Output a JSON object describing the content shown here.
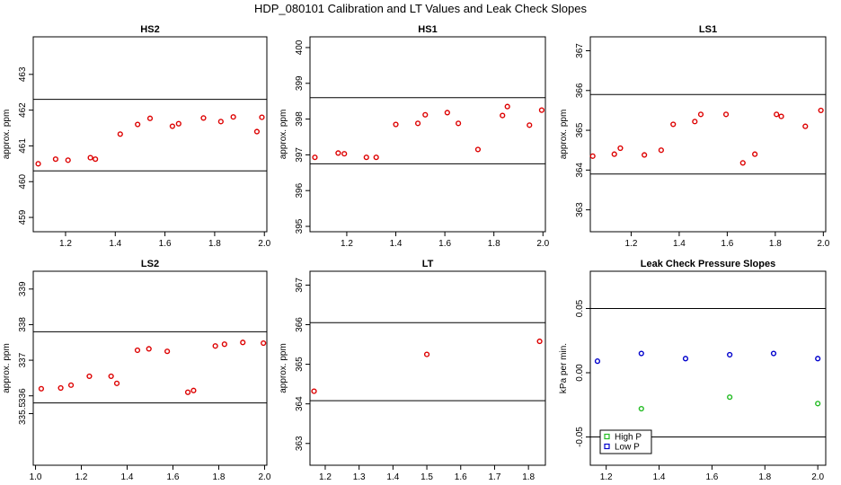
{
  "figure": {
    "title": "HDP_080101  Calibration and LT Values and Leak Check Slopes"
  },
  "chart_data": [
    {
      "type": "scatter",
      "title": "HS2",
      "ylabel": "approx. ppm",
      "xlim": [
        1.07,
        2.01
      ],
      "ylim": [
        458.6,
        464.05
      ],
      "xticks": [
        "1.2",
        "1.4",
        "1.6",
        "1.8",
        "2.0"
      ],
      "xtick_values": [
        1.2,
        1.4,
        1.6,
        1.8,
        2.0
      ],
      "yticks": [
        "459",
        "460",
        "461",
        "462",
        "463"
      ],
      "ytick_values": [
        459,
        460,
        461,
        462,
        463
      ],
      "hlines": [
        460.3,
        462.3
      ],
      "series": [
        {
          "color": "#dd0000",
          "x": [
            1.09,
            1.16,
            1.21,
            1.3,
            1.32,
            1.42,
            1.49,
            1.54,
            1.63,
            1.655,
            1.755,
            1.825,
            1.875,
            1.97,
            1.99
          ],
          "y": [
            460.5,
            460.63,
            460.6,
            460.67,
            460.63,
            461.33,
            461.6,
            461.77,
            461.55,
            461.62,
            461.78,
            461.68,
            461.81,
            461.4,
            461.8
          ]
        }
      ]
    },
    {
      "type": "scatter",
      "title": "HS1",
      "ylabel": "approx. ppm",
      "xlim": [
        1.05,
        2.01
      ],
      "ylim": [
        394.85,
        400.3
      ],
      "xticks": [
        "1.2",
        "1.4",
        "1.6",
        "1.8",
        "2.0"
      ],
      "xtick_values": [
        1.2,
        1.4,
        1.6,
        1.8,
        2.0
      ],
      "yticks": [
        "395",
        "396",
        "397",
        "398",
        "399",
        "400"
      ],
      "ytick_values": [
        395,
        396,
        397,
        398,
        399,
        400
      ],
      "hlines": [
        396.75,
        398.6
      ],
      "series": [
        {
          "color": "#dd0000",
          "x": [
            1.07,
            1.165,
            1.19,
            1.28,
            1.32,
            1.4,
            1.49,
            1.52,
            1.61,
            1.655,
            1.735,
            1.835,
            1.855,
            1.945,
            1.995
          ],
          "y": [
            396.93,
            397.05,
            397.03,
            396.93,
            396.93,
            397.85,
            397.88,
            398.12,
            398.18,
            397.88,
            397.15,
            398.1,
            398.35,
            397.83,
            398.25
          ]
        }
      ]
    },
    {
      "type": "scatter",
      "title": "LS1",
      "ylabel": "approx. ppm",
      "xlim": [
        1.03,
        2.01
      ],
      "ylim": [
        362.45,
        367.35
      ],
      "xticks": [
        "1.2",
        "1.4",
        "1.6",
        "1.8",
        "2.0"
      ],
      "xtick_values": [
        1.2,
        1.4,
        1.6,
        1.8,
        2.0
      ],
      "yticks": [
        "363",
        "364",
        "365",
        "366",
        "367"
      ],
      "ytick_values": [
        363,
        364,
        365,
        366,
        367
      ],
      "hlines": [
        363.9,
        365.9
      ],
      "series": [
        {
          "color": "#dd0000",
          "x": [
            1.04,
            1.13,
            1.155,
            1.255,
            1.325,
            1.375,
            1.465,
            1.49,
            1.595,
            1.665,
            1.715,
            1.805,
            1.825,
            1.925,
            1.99
          ],
          "y": [
            364.35,
            364.4,
            364.55,
            364.38,
            364.5,
            365.15,
            365.22,
            365.4,
            365.4,
            364.18,
            364.4,
            365.4,
            365.35,
            365.1,
            365.5
          ]
        }
      ]
    },
    {
      "type": "scatter",
      "title": "LS2",
      "ylabel": "approx. ppm",
      "xlim": [
        0.99,
        2.01
      ],
      "ylim": [
        334.05,
        339.5
      ],
      "xticks": [
        "1.0",
        "1.2",
        "1.4",
        "1.6",
        "1.8",
        "2.0"
      ],
      "xtick_values": [
        1.0,
        1.2,
        1.4,
        1.6,
        1.8,
        2.0
      ],
      "yticks": [
        "335.5",
        "336",
        "337",
        "338",
        "339"
      ],
      "ytick_values": [
        335.5,
        336,
        337,
        338,
        339
      ],
      "hlines": [
        335.8,
        337.8
      ],
      "series": [
        {
          "color": "#dd0000",
          "x": [
            1.025,
            1.11,
            1.155,
            1.235,
            1.33,
            1.355,
            1.445,
            1.495,
            1.575,
            1.665,
            1.69,
            1.785,
            1.825,
            1.905,
            1.995
          ],
          "y": [
            336.2,
            336.22,
            336.3,
            336.55,
            336.55,
            336.35,
            337.28,
            337.32,
            337.25,
            336.1,
            336.15,
            337.4,
            337.45,
            337.5,
            337.48
          ]
        }
      ]
    },
    {
      "type": "scatter",
      "title": "LT",
      "ylabel": "approx. ppm",
      "xlim": [
        1.155,
        1.85
      ],
      "ylim": [
        362.45,
        367.35
      ],
      "xticks": [
        "1.2",
        "1.3",
        "1.4",
        "1.5",
        "1.6",
        "1.7",
        "1.8"
      ],
      "xtick_values": [
        1.2,
        1.3,
        1.4,
        1.5,
        1.6,
        1.7,
        1.8
      ],
      "yticks": [
        "363",
        "364",
        "365",
        "366",
        "367"
      ],
      "ytick_values": [
        363,
        364,
        365,
        366,
        367
      ],
      "hlines": [
        364.08,
        366.05
      ],
      "series": [
        {
          "color": "#dd0000",
          "x": [
            1.167,
            1.5,
            1.833
          ],
          "y": [
            364.32,
            365.25,
            365.58
          ]
        }
      ]
    },
    {
      "type": "scatter",
      "title": "Leak Check Pressure Slopes",
      "ylabel": "kPa per min.",
      "xlim": [
        1.14,
        2.03
      ],
      "ylim": [
        -0.072,
        0.079
      ],
      "xticks": [
        "1.2",
        "1.4",
        "1.6",
        "1.8",
        "2.0"
      ],
      "xtick_values": [
        1.2,
        1.4,
        1.6,
        1.8,
        2.0
      ],
      "yticks": [
        "-0.05",
        "0.00",
        "0.05"
      ],
      "ytick_values": [
        -0.05,
        0.0,
        0.05
      ],
      "hlines": [
        -0.05,
        0.05
      ],
      "legend_position": "bottom-left",
      "series": [
        {
          "name": "High P",
          "color": "#22bb22",
          "x": [
            1.333,
            1.667,
            2.0
          ],
          "y": [
            -0.028,
            -0.019,
            -0.024
          ]
        },
        {
          "name": "Low P",
          "color": "#0000cc",
          "x": [
            1.167,
            1.333,
            1.5,
            1.667,
            1.833,
            2.0
          ],
          "y": [
            0.009,
            0.015,
            0.011,
            0.014,
            0.015,
            0.011
          ]
        }
      ]
    }
  ]
}
